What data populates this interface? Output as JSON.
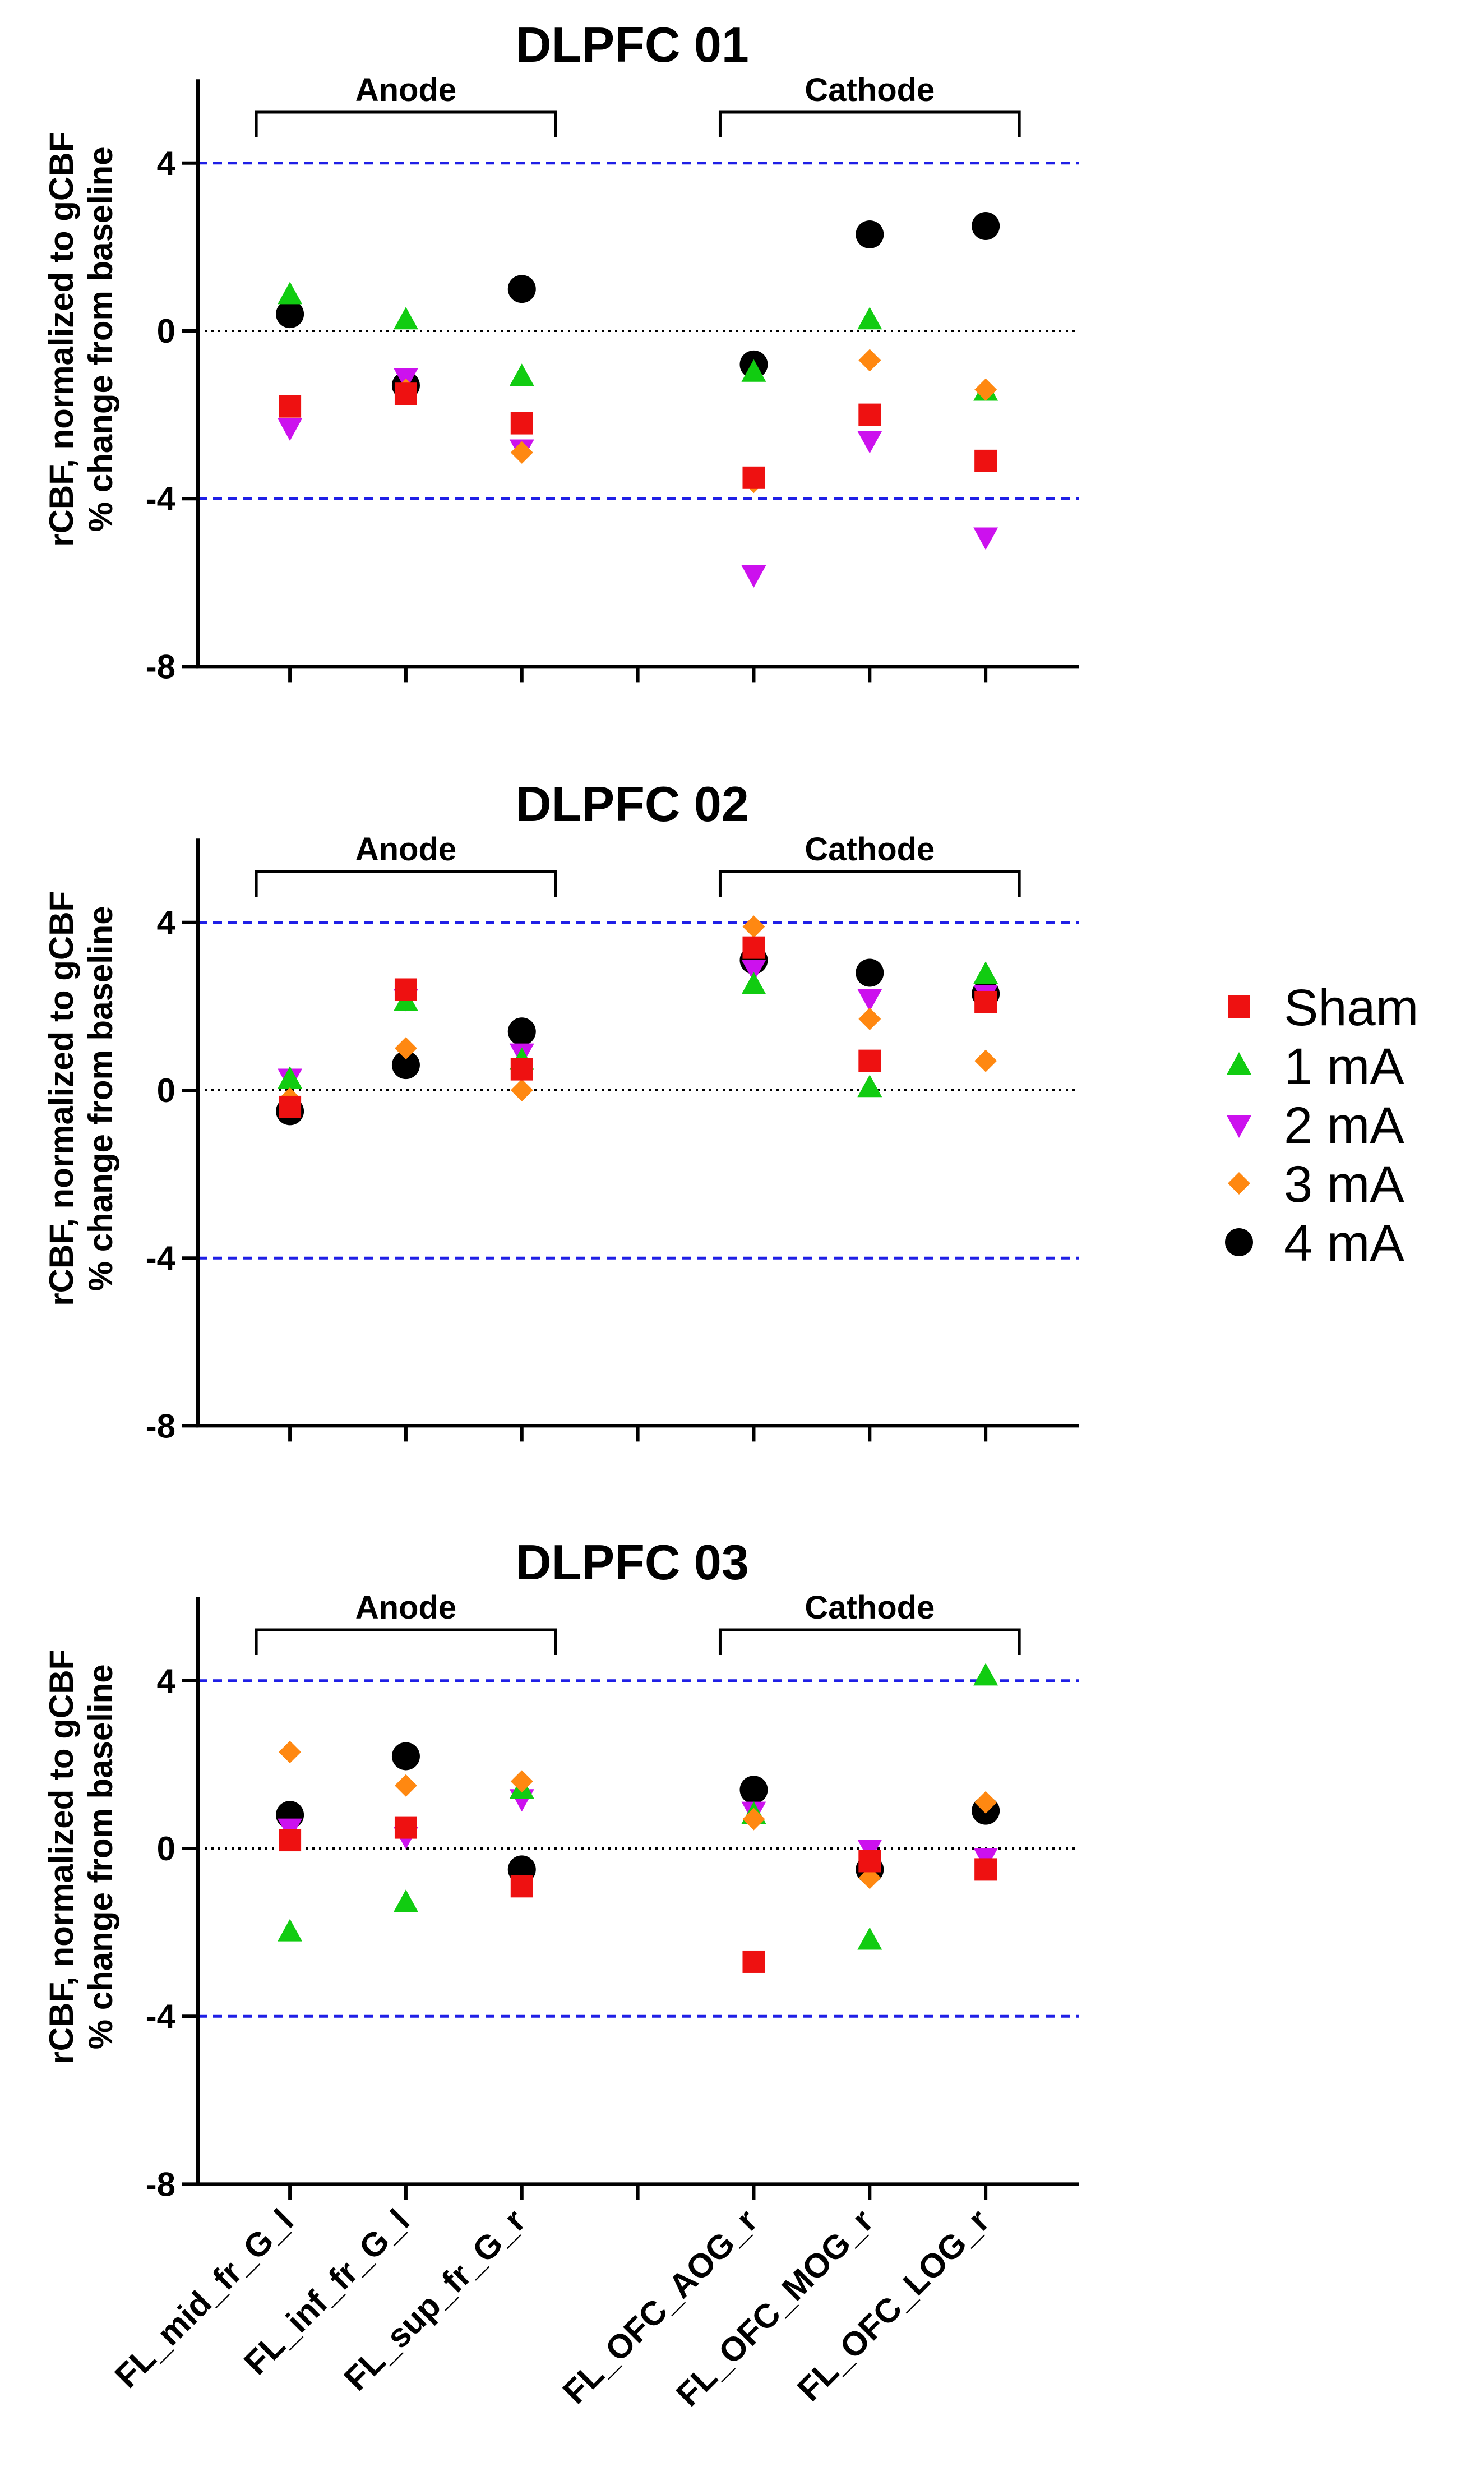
{
  "chart_data": {
    "type": "scatter",
    "categories": [
      "FL_mid_fr_G_l",
      "FL_inf_fr_G_l",
      "FL_sup_fr_G_r",
      "FL_OFC_AOG_r",
      "FL_OFC_MOG_r",
      "FL_OFC_LOG_r"
    ],
    "category_slots": [
      1,
      2,
      3,
      5,
      6,
      7
    ],
    "ylabel_line1": "rCBF, normalized to gCBF",
    "ylabel_line2": "% change from baseline",
    "yticks": [
      4,
      0,
      -4,
      -8
    ],
    "ylim": [
      -8,
      6
    ],
    "reference_lines": {
      "dashed_blue": [
        4,
        -4
      ],
      "dotted_black": [
        0
      ]
    },
    "colors": {
      "Sham": "#ee1111",
      "1 mA": "#11cc11",
      "2 mA": "#cc11ee",
      "3 mA": "#ff8811",
      "4 mA": "#000000",
      "reference_blue": "#1f1fe6"
    },
    "legend": [
      {
        "name": "Sham",
        "marker": "square"
      },
      {
        "name": "1 mA",
        "marker": "triangle-up"
      },
      {
        "name": "2 mA",
        "marker": "triangle-down"
      },
      {
        "name": "3 mA",
        "marker": "diamond"
      },
      {
        "name": "4 mA",
        "marker": "circle"
      }
    ],
    "legend_position": "right",
    "groups": [
      {
        "label": "Anode",
        "from": 0,
        "to": 2
      },
      {
        "label": "Cathode",
        "from": 3,
        "to": 5
      }
    ],
    "panels": [
      {
        "title": "DLPFC 01",
        "series": [
          {
            "name": "Sham",
            "values": [
              -1.8,
              -1.5,
              -2.2,
              -3.5,
              -2.0,
              -3.1
            ]
          },
          {
            "name": "1 mA",
            "values": [
              0.85,
              0.25,
              -1.1,
              -1.0,
              0.25,
              -1.45
            ]
          },
          {
            "name": "2 mA",
            "values": [
              -2.3,
              -1.1,
              -2.8,
              -5.8,
              -2.6,
              -4.9
            ]
          },
          {
            "name": "3 mA",
            "values": [
              -1.8,
              -1.4,
              -2.9,
              -3.6,
              -0.7,
              -1.4
            ]
          },
          {
            "name": "4 mA",
            "values": [
              0.4,
              -1.3,
              1.0,
              -0.8,
              2.3,
              2.5
            ]
          }
        ]
      },
      {
        "title": "DLPFC 02",
        "series": [
          {
            "name": "Sham",
            "values": [
              -0.4,
              2.4,
              0.5,
              3.4,
              0.7,
              2.1
            ]
          },
          {
            "name": "1 mA",
            "values": [
              0.25,
              2.1,
              0.7,
              2.5,
              0.05,
              2.75
            ]
          },
          {
            "name": "2 mA",
            "values": [
              0.3,
              2.2,
              0.9,
              2.9,
              2.2,
              2.3
            ]
          },
          {
            "name": "3 mA",
            "values": [
              -0.2,
              1.0,
              0.0,
              3.9,
              1.7,
              0.7
            ]
          },
          {
            "name": "4 mA",
            "values": [
              -0.5,
              0.6,
              1.4,
              3.1,
              2.8,
              2.3
            ]
          }
        ]
      },
      {
        "title": "DLPFC 03",
        "series": [
          {
            "name": "Sham",
            "values": [
              0.2,
              0.5,
              -0.9,
              -2.7,
              -0.3,
              -0.5
            ]
          },
          {
            "name": "1 mA",
            "values": [
              -2.0,
              -1.3,
              1.4,
              0.8,
              -2.2,
              4.1
            ]
          },
          {
            "name": "2 mA",
            "values": [
              0.5,
              0.3,
              1.2,
              0.9,
              0.0,
              -0.2
            ]
          },
          {
            "name": "3 mA",
            "values": [
              2.3,
              1.5,
              1.6,
              0.7,
              -0.7,
              1.1
            ]
          },
          {
            "name": "4 mA",
            "values": [
              0.8,
              2.2,
              -0.5,
              1.4,
              -0.5,
              0.9
            ]
          }
        ]
      }
    ]
  }
}
